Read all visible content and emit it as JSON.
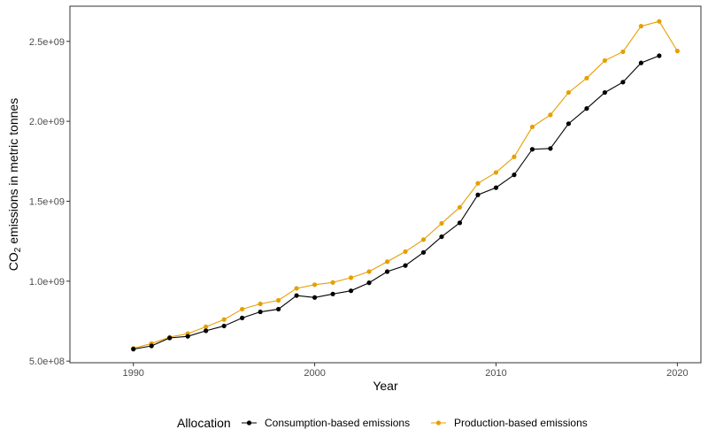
{
  "chart_data": {
    "type": "line",
    "xlabel": "Year",
    "ylabel_main": "CO",
    "ylabel_sub": "2",
    "ylabel_rest": " emissions in metric tonnes",
    "xlim": [
      1986.5,
      2021.3
    ],
    "ylim": [
      490000000,
      2720000000
    ],
    "x_ticks": [
      1990,
      2000,
      2010,
      2020
    ],
    "x_tick_labels": [
      "1990",
      "2000",
      "2010",
      "2020"
    ],
    "y_ticks": [
      500000000,
      1000000000,
      1500000000,
      2000000000,
      2500000000
    ],
    "y_tick_labels": [
      "5.0e+08",
      "1.0e+09",
      "1.5e+09",
      "2.0e+09",
      "2.5e+09"
    ],
    "grid": false,
    "legend": {
      "title": "Allocation",
      "position": "bottom"
    },
    "series": [
      {
        "name": "Consumption-based emissions",
        "color": "#000000",
        "x": [
          1990,
          1991,
          1992,
          1993,
          1994,
          1995,
          1996,
          1997,
          1998,
          1999,
          2000,
          2001,
          2002,
          2003,
          2004,
          2005,
          2006,
          2007,
          2008,
          2009,
          2010,
          2011,
          2012,
          2013,
          2014,
          2015,
          2016,
          2017,
          2018,
          2019
        ],
        "y": [
          575000000,
          595000000,
          645000000,
          655000000,
          690000000,
          720000000,
          770000000,
          808000000,
          825000000,
          910000000,
          898000000,
          920000000,
          940000000,
          990000000,
          1060000000,
          1098000000,
          1180000000,
          1278000000,
          1365000000,
          1540000000,
          1585000000,
          1665000000,
          1825000000,
          1830000000,
          1985000000,
          2080000000,
          2180000000,
          2245000000,
          2365000000,
          2410000000
        ]
      },
      {
        "name": "Production-based emissions",
        "color": "#E69F00",
        "x": [
          1990,
          1991,
          1992,
          1993,
          1994,
          1995,
          1996,
          1997,
          1998,
          1999,
          2000,
          2001,
          2002,
          2003,
          2004,
          2005,
          2006,
          2007,
          2008,
          2009,
          2010,
          2011,
          2012,
          2013,
          2014,
          2015,
          2016,
          2017,
          2018,
          2019,
          2020
        ],
        "y": [
          580000000,
          610000000,
          650000000,
          672000000,
          715000000,
          760000000,
          825000000,
          858000000,
          880000000,
          955000000,
          978000000,
          992000000,
          1022000000,
          1060000000,
          1122000000,
          1185000000,
          1260000000,
          1362000000,
          1462000000,
          1612000000,
          1680000000,
          1778000000,
          1965000000,
          2040000000,
          2180000000,
          2270000000,
          2380000000,
          2435000000,
          2595000000,
          2625000000,
          2440000000
        ]
      }
    ]
  }
}
